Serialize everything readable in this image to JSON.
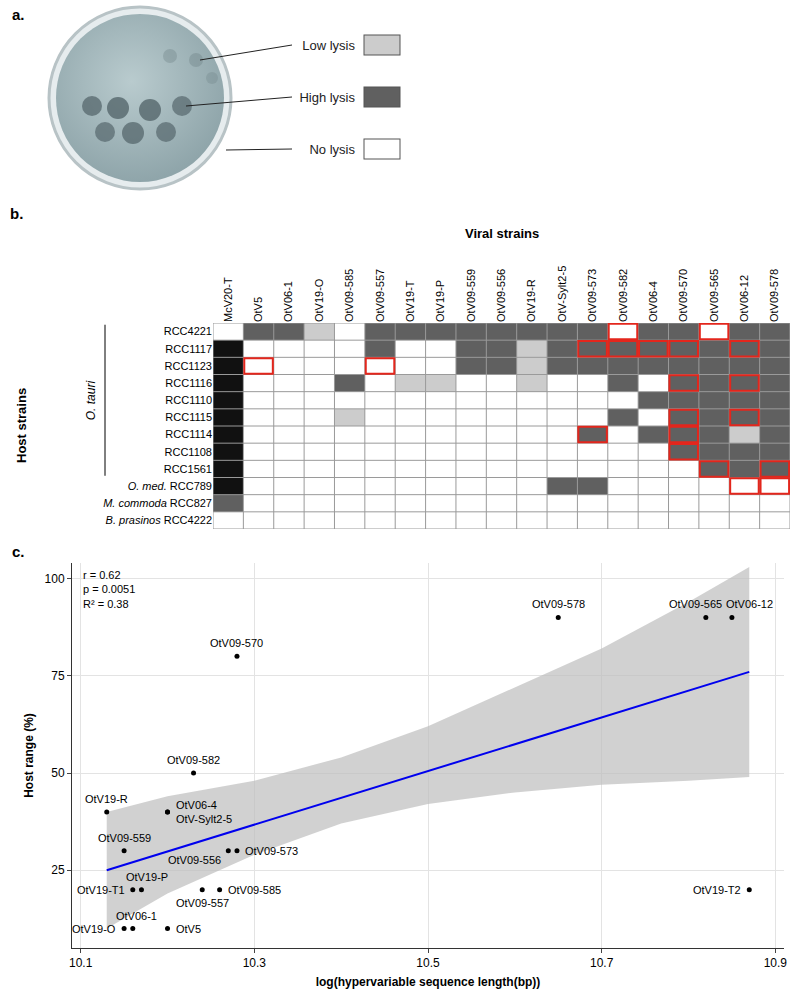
{
  "chart_data": [
    {
      "type": "image",
      "panel": "a."
    },
    {
      "type": "heatmap",
      "panel": "b.",
      "title": "Viral strains",
      "y_title": "Host strains",
      "categories": [
        "McV20-T",
        "OtV5",
        "OtV06-1",
        "OtV19-O",
        "OtV09-585",
        "OtV09-557",
        "OtV19-T",
        "OtV19-P",
        "OtV09-559",
        "OtV09-556",
        "OtV19-R",
        "OtV-Sylt2-5",
        "OtV09-573",
        "OtV09-582",
        "OtV06-4",
        "OtV09-570",
        "OtV09-565",
        "OtV06-12",
        "OtV09-578"
      ],
      "groups": [
        {
          "label": "O. tauri",
          "members": [
            "RCC4221",
            "RCC1117",
            "RCC1123",
            "RCC1116",
            "RCC1110",
            "RCC1115",
            "RCC1114",
            "RCC1108",
            "RCC1561"
          ]
        },
        {
          "label": "O. med.",
          "members": [
            "RCC789"
          ]
        },
        {
          "label": "M. commoda",
          "members": [
            "RCC827"
          ]
        },
        {
          "label": "B. prasinos",
          "members": [
            "RCC4222"
          ]
        }
      ],
      "levels": [
        {
          "label": "Low lysis",
          "color": "#cccccc"
        },
        {
          "label": "High lysis",
          "color": "#606060"
        },
        {
          "label": "No lysis",
          "color": "#ffffff"
        },
        {
          "color": "#111111"
        }
      ],
      "cells": [
        [
          2,
          1,
          1,
          0,
          2,
          1,
          1,
          1,
          1,
          1,
          1,
          1,
          1,
          2,
          1,
          1,
          2,
          1,
          1
        ],
        [
          3,
          2,
          2,
          2,
          2,
          1,
          2,
          2,
          1,
          1,
          0,
          1,
          1,
          1,
          1,
          1,
          1,
          1,
          1
        ],
        [
          3,
          2,
          2,
          2,
          2,
          2,
          2,
          2,
          1,
          1,
          0,
          1,
          1,
          1,
          1,
          1,
          1,
          1,
          1
        ],
        [
          3,
          2,
          2,
          2,
          1,
          2,
          0,
          0,
          2,
          2,
          0,
          2,
          2,
          1,
          2,
          1,
          1,
          1,
          1
        ],
        [
          3,
          2,
          2,
          2,
          2,
          2,
          2,
          2,
          2,
          2,
          2,
          2,
          2,
          2,
          1,
          1,
          1,
          1,
          1
        ],
        [
          3,
          2,
          2,
          2,
          0,
          2,
          2,
          2,
          2,
          2,
          2,
          2,
          2,
          1,
          2,
          1,
          1,
          1,
          1
        ],
        [
          3,
          2,
          2,
          2,
          2,
          2,
          2,
          2,
          2,
          2,
          2,
          2,
          1,
          2,
          1,
          1,
          1,
          0,
          1
        ],
        [
          3,
          2,
          2,
          2,
          2,
          2,
          2,
          2,
          2,
          2,
          2,
          2,
          2,
          2,
          2,
          1,
          1,
          1,
          1
        ],
        [
          3,
          2,
          2,
          2,
          2,
          2,
          2,
          2,
          2,
          2,
          2,
          2,
          2,
          2,
          2,
          2,
          1,
          1,
          1
        ],
        [
          3,
          2,
          2,
          2,
          2,
          2,
          2,
          2,
          2,
          2,
          2,
          1,
          1,
          2,
          2,
          2,
          2,
          2,
          2
        ],
        [
          1,
          2,
          2,
          2,
          2,
          2,
          2,
          2,
          2,
          2,
          2,
          2,
          2,
          2,
          2,
          2,
          2,
          2,
          2
        ],
        [
          2,
          2,
          2,
          2,
          2,
          2,
          2,
          2,
          2,
          2,
          2,
          2,
          2,
          2,
          2,
          2,
          2,
          2,
          2
        ]
      ],
      "outlined_cells": [
        [
          0,
          13
        ],
        [
          0,
          16
        ],
        [
          1,
          12
        ],
        [
          1,
          13
        ],
        [
          1,
          14
        ],
        [
          1,
          15
        ],
        [
          1,
          17
        ],
        [
          2,
          1
        ],
        [
          2,
          5
        ],
        [
          3,
          15
        ],
        [
          3,
          17
        ],
        [
          5,
          15
        ],
        [
          5,
          17
        ],
        [
          6,
          12
        ],
        [
          6,
          15
        ],
        [
          7,
          15
        ],
        [
          8,
          16
        ],
        [
          8,
          18
        ],
        [
          9,
          17
        ],
        [
          9,
          18
        ]
      ],
      "outline_color": "#e3261c"
    },
    {
      "type": "scatter",
      "panel": "c.",
      "x_label": "log(hypervariable sequence length(bp))",
      "y_label": "Host range (%)",
      "point_labels": [
        "OtV09-578",
        "OtV09-565",
        "OtV06-12",
        "OtV09-570",
        "OtV09-582",
        "OtV19-R",
        "OtV06-4",
        "OtV-Sylt2-5",
        "OtV09-559",
        "OtV09-556",
        "OtV09-573",
        "OtV19-P",
        "OtV19-T1",
        "OtV09-557",
        "OtV09-585",
        "OtV19-T2",
        "OtV06-1",
        "OtV19-O",
        "OtV5"
      ],
      "x": [
        10.65,
        10.82,
        10.85,
        10.28,
        10.23,
        10.13,
        10.2,
        10.2,
        10.15,
        10.27,
        10.28,
        10.17,
        10.16,
        10.24,
        10.26,
        10.87,
        10.16,
        10.15,
        10.2
      ],
      "values": [
        90,
        90,
        90,
        80,
        50,
        40,
        40,
        40,
        30,
        30,
        30,
        20,
        20,
        20,
        20,
        20,
        10,
        10,
        10
      ],
      "color": "#000000",
      "fit": {
        "x": [
          10.13,
          10.87
        ],
        "values": [
          25,
          76
        ],
        "color": "#0000ee"
      },
      "band": {
        "x": [
          10.13,
          10.2,
          10.3,
          10.4,
          10.5,
          10.6,
          10.7,
          10.8,
          10.87
        ],
        "lower": [
          10,
          19,
          29,
          37,
          42,
          45,
          47,
          48,
          49
        ],
        "upper": [
          40,
          44,
          48,
          54,
          62,
          72,
          82,
          94,
          103
        ],
        "color": "#bdbdbd"
      },
      "annotations": [
        "r = 0.62",
        "p = 0.0051",
        "R² = 0.38"
      ],
      "xlim": [
        10.09,
        10.91
      ],
      "xticks": [
        10.1,
        10.3,
        10.5,
        10.7,
        10.9
      ],
      "ylim": [
        5,
        104
      ],
      "yticks": [
        25,
        50,
        75,
        100
      ],
      "grid": true
    }
  ]
}
